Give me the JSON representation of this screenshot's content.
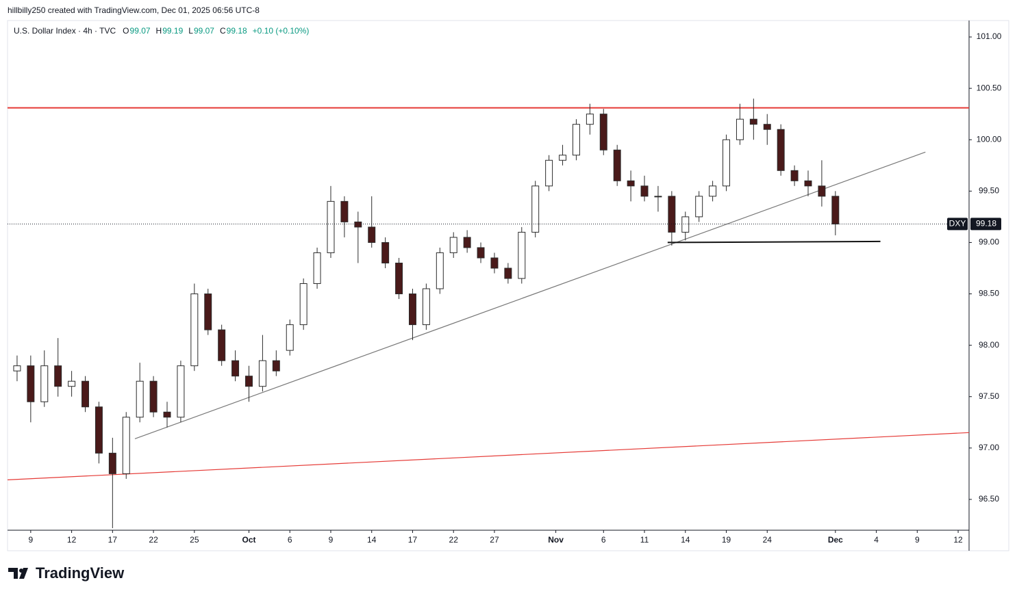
{
  "header": "hillbilly250 created with TradingView.com, Dec 01, 2025 06:56 UTC-8",
  "brand": "TradingView",
  "chart_data": {
    "type": "candlestick",
    "title": "U.S. Dollar Index · 4h · TVC",
    "ohlc_legend": [
      {
        "label": "O",
        "value": 99.07
      },
      {
        "label": "H",
        "value": 99.19
      },
      {
        "label": "L",
        "value": 99.07
      },
      {
        "label": "C",
        "value": 99.18
      }
    ],
    "change": "+0.10 (+0.10%)",
    "symbol": "DXY",
    "last_price": 99.18,
    "up_color": "#ffffff",
    "down_color": "#4a1a1a",
    "wick_color": "#2b2b2b",
    "x": [
      -1,
      0,
      1,
      2,
      3,
      4,
      5,
      6,
      7,
      8,
      9,
      10,
      11,
      12,
      13,
      14,
      15,
      16,
      17,
      18,
      19,
      20,
      21,
      22,
      23,
      24,
      25,
      26,
      27,
      28,
      29,
      30,
      31,
      32,
      33,
      34,
      35,
      36,
      37,
      38,
      39,
      40,
      41,
      42,
      43,
      44,
      45,
      46,
      47,
      48,
      49,
      50,
      51,
      52,
      53,
      54,
      55,
      56,
      57,
      58,
      59
    ],
    "open": [
      97.75,
      97.8,
      97.45,
      97.8,
      97.6,
      97.65,
      97.4,
      96.95,
      96.75,
      97.3,
      97.65,
      97.35,
      97.3,
      97.8,
      98.5,
      98.15,
      97.85,
      97.7,
      97.6,
      97.85,
      97.95,
      98.2,
      98.6,
      98.9,
      99.4,
      99.2,
      99.15,
      99.0,
      98.8,
      98.5,
      98.2,
      98.55,
      98.9,
      99.05,
      98.95,
      98.85,
      98.75,
      98.65,
      99.1,
      99.55,
      99.8,
      99.85,
      100.15,
      100.25,
      99.9,
      99.6,
      99.55,
      99.45,
      99.45,
      99.1,
      99.25,
      99.45,
      99.55,
      100.0,
      100.2,
      100.15,
      100.1,
      99.7,
      99.6,
      99.55,
      99.45
    ],
    "high": [
      97.9,
      97.9,
      97.95,
      98.07,
      97.75,
      97.7,
      97.45,
      97.1,
      97.35,
      97.83,
      97.7,
      97.45,
      97.85,
      98.6,
      98.55,
      98.2,
      97.95,
      97.8,
      98.1,
      97.95,
      98.25,
      98.65,
      98.95,
      99.55,
      99.45,
      99.3,
      99.45,
      99.05,
      98.85,
      98.55,
      98.6,
      98.95,
      99.1,
      99.12,
      99.0,
      98.9,
      98.8,
      99.15,
      99.6,
      99.85,
      99.95,
      100.2,
      100.35,
      100.3,
      99.95,
      99.7,
      99.65,
      99.55,
      99.5,
      99.3,
      99.5,
      99.6,
      100.05,
      100.35,
      100.4,
      100.25,
      100.15,
      99.75,
      99.7,
      99.8,
      99.5
    ],
    "low": [
      97.65,
      97.25,
      97.4,
      97.5,
      97.5,
      97.35,
      96.85,
      96.22,
      96.7,
      97.25,
      97.3,
      97.2,
      97.25,
      97.75,
      98.1,
      97.8,
      97.65,
      97.45,
      97.55,
      97.7,
      97.9,
      98.15,
      98.55,
      98.85,
      99.05,
      98.8,
      98.95,
      98.75,
      98.45,
      98.05,
      98.15,
      98.5,
      98.85,
      98.9,
      98.8,
      98.7,
      98.6,
      98.6,
      99.05,
      99.5,
      99.75,
      99.8,
      100.05,
      99.85,
      99.55,
      99.4,
      99.4,
      99.3,
      98.97,
      99.02,
      99.2,
      99.4,
      99.5,
      99.95,
      100.0,
      99.95,
      99.65,
      99.55,
      99.45,
      99.35,
      99.07
    ],
    "close": [
      97.8,
      97.45,
      97.8,
      97.6,
      97.65,
      97.4,
      96.95,
      96.75,
      97.3,
      97.65,
      97.35,
      97.3,
      97.8,
      98.5,
      98.15,
      97.85,
      97.7,
      97.6,
      97.85,
      97.75,
      98.2,
      98.6,
      98.9,
      99.4,
      99.2,
      99.15,
      99.0,
      98.8,
      98.5,
      98.2,
      98.55,
      98.9,
      99.05,
      98.95,
      98.85,
      98.75,
      98.65,
      99.1,
      99.55,
      99.8,
      99.85,
      100.15,
      100.25,
      99.9,
      99.6,
      99.55,
      99.45,
      99.45,
      99.1,
      99.25,
      99.45,
      99.55,
      100.0,
      100.2,
      100.15,
      100.1,
      99.7,
      99.6,
      99.55,
      99.45,
      99.18
    ],
    "lines": [
      {
        "color": "#e53935",
        "width": 2,
        "x": [
          -1.7,
          68.8
        ],
        "y": [
          100.31,
          100.31
        ]
      },
      {
        "color": "#e53935",
        "width": 1.2,
        "x": [
          -1.7,
          68.8
        ],
        "y": [
          96.69,
          97.15
        ]
      },
      {
        "color": "#777777",
        "width": 1.2,
        "x": [
          7.64,
          65.6
        ],
        "y": [
          97.09,
          99.88
        ]
      },
      {
        "color": "#111111",
        "width": 2,
        "x": [
          46.7,
          62.3
        ],
        "y": [
          99.0,
          99.01
        ]
      }
    ],
    "xlim": [
      -1.7,
      68.8
    ],
    "xticks": [
      {
        "value": 0,
        "label": "9"
      },
      {
        "value": 3,
        "label": "12"
      },
      {
        "value": 6,
        "label": "17"
      },
      {
        "value": 9,
        "label": "22"
      },
      {
        "value": 12,
        "label": "25"
      },
      {
        "value": 16,
        "label": "Oct"
      },
      {
        "value": 19,
        "label": "6"
      },
      {
        "value": 22,
        "label": "9"
      },
      {
        "value": 25,
        "label": "14"
      },
      {
        "value": 28,
        "label": "17"
      },
      {
        "value": 31,
        "label": "22"
      },
      {
        "value": 34,
        "label": "27"
      },
      {
        "value": 38.5,
        "label": "Nov"
      },
      {
        "value": 42,
        "label": "6"
      },
      {
        "value": 45,
        "label": "11"
      },
      {
        "value": 48,
        "label": "14"
      },
      {
        "value": 51,
        "label": "19"
      },
      {
        "value": 54,
        "label": "24"
      },
      {
        "value": 59,
        "label": "Dec"
      },
      {
        "value": 62,
        "label": "4"
      },
      {
        "value": 65,
        "label": "9"
      },
      {
        "value": 68,
        "label": "12"
      }
    ],
    "ylim": [
      96.2,
      101.16
    ],
    "yticks": [
      {
        "value": 96.5,
        "label": "96.50"
      },
      {
        "value": 97,
        "label": "97.00"
      },
      {
        "value": 97.5,
        "label": "97.50"
      },
      {
        "value": 98,
        "label": "98.00"
      },
      {
        "value": 98.5,
        "label": "98.50"
      },
      {
        "value": 99,
        "label": "99.00"
      },
      {
        "value": 99.5,
        "label": "99.50"
      },
      {
        "value": 100,
        "label": "100.00"
      },
      {
        "value": 100.5,
        "label": "100.50"
      },
      {
        "value": 101,
        "label": "101.00"
      }
    ]
  }
}
